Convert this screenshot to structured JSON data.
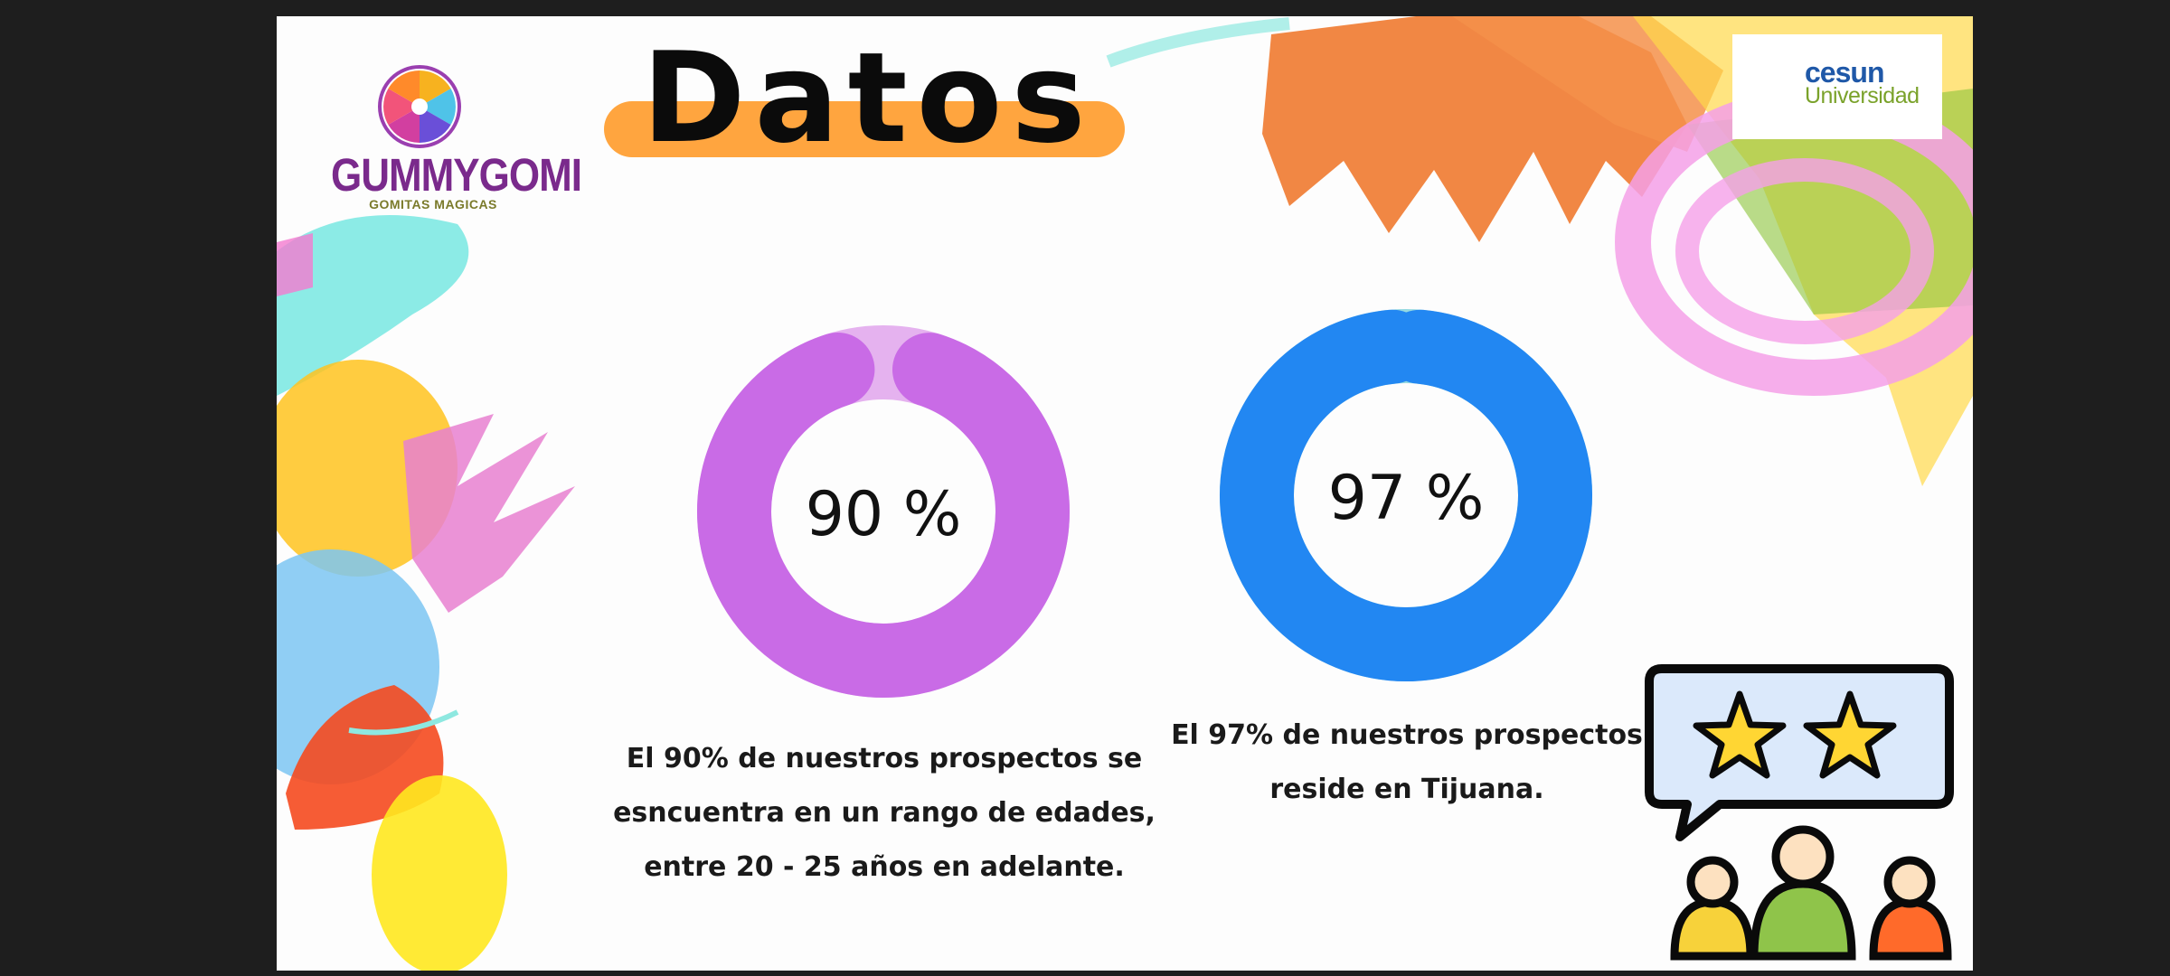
{
  "title": "Datos",
  "brand": {
    "name": "GUMMYGOMI",
    "tagline": "GOMITAS MAGICAS"
  },
  "partner": {
    "name": "cesun",
    "sub": "Universidad"
  },
  "colors": {
    "background": "#fdfdfd",
    "title_pill": "#ffa53f",
    "donut1_fill": "#c96be6",
    "donut1_rest": "#e5b2ef",
    "donut2_fill": "#2287f2",
    "donut2_rest": "#95d9e0",
    "star": "#ffd633",
    "bubble": "#dbe9fb"
  },
  "chart_data": [
    {
      "type": "pie",
      "variant": "donut",
      "center_label": "90 %",
      "values": [
        90,
        10
      ],
      "caption": [
        "El 90% de nuestros prospectos se",
        "esncuentra en un rango de edades,",
        "entre 20 - 25 años en adelante."
      ]
    },
    {
      "type": "pie",
      "variant": "donut",
      "center_label": "97 %",
      "values": [
        97,
        3
      ],
      "caption": [
        "El 97% de nuestros prospectos",
        "reside en Tijuana."
      ]
    }
  ],
  "icons": [
    "gummygomi-wheel-logo",
    "cesun-logo-icon",
    "review-stars-icon",
    "people-group-icon"
  ]
}
